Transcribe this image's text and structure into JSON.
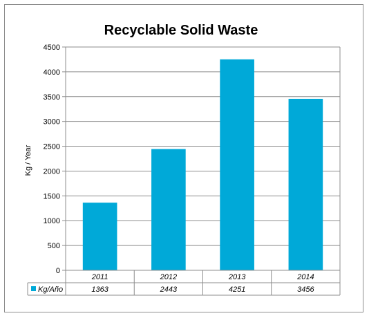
{
  "colors": {
    "bar": "#00A9D8",
    "grid": "#8c8c8c",
    "border": "#8c8c8c"
  },
  "chart_data": {
    "type": "bar",
    "title": "Recyclable Solid Waste",
    "xlabel": "",
    "ylabel": "Kg / Year",
    "categories": [
      "2011",
      "2012",
      "2013",
      "2014"
    ],
    "series": [
      {
        "name": "Kg/Año",
        "values": [
          1363,
          2443,
          4251,
          3456
        ]
      }
    ],
    "ylim": [
      0,
      4500
    ],
    "yticks": [
      0,
      500,
      1000,
      1500,
      2000,
      2500,
      3000,
      3500,
      4000,
      4500
    ],
    "grid": true,
    "legend": "data-table-left"
  }
}
